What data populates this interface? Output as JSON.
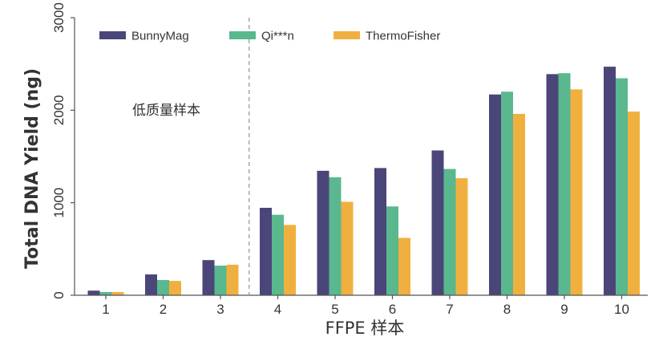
{
  "chart_data": {
    "type": "bar",
    "title": "",
    "xlabel": "FFPE 样本",
    "ylabel": "Total DNA Yield (ng)",
    "ylim": [
      0,
      3000
    ],
    "yticks": [
      0,
      1000,
      2000,
      3000
    ],
    "categories": [
      "1",
      "2",
      "3",
      "4",
      "5",
      "6",
      "7",
      "8",
      "9",
      "10"
    ],
    "series": [
      {
        "name": "BunnyMag",
        "color": "#4a4679",
        "values": [
          50,
          225,
          380,
          945,
          1345,
          1375,
          1565,
          2170,
          2390,
          2470
        ]
      },
      {
        "name": "Qi***n",
        "color": "#5ab88f",
        "values": [
          35,
          165,
          320,
          870,
          1275,
          960,
          1365,
          2200,
          2400,
          2345
        ]
      },
      {
        "name": "ThermoFisher",
        "color": "#f0b040",
        "values": [
          35,
          155,
          330,
          760,
          1010,
          620,
          1265,
          1960,
          2225,
          1985
        ]
      }
    ],
    "annotation": "低质量样本",
    "divider_after_category": "3",
    "legend_position": "top-left",
    "grid": false
  }
}
